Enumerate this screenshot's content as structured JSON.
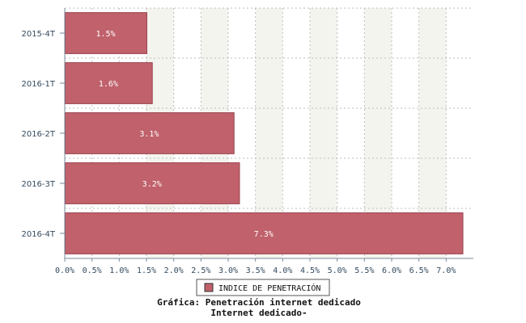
{
  "chart_data": {
    "type": "bar",
    "orientation": "horizontal",
    "categories": [
      "2015-4T",
      "2016-1T",
      "2016-2T",
      "2016-3T",
      "2016-4T"
    ],
    "series": [
      {
        "name": "INDICE DE PENETRACIÓN",
        "values": [
          1.5,
          1.6,
          3.1,
          3.2,
          7.3
        ],
        "data_labels": [
          "1.5%",
          "1.6%",
          "3.1%",
          "3.2%",
          "7.3%"
        ],
        "color": "#c0616b"
      }
    ],
    "xlim": [
      0,
      7.5
    ],
    "x_ticks": [
      0.0,
      0.5,
      1.0,
      1.5,
      2.0,
      2.5,
      3.0,
      3.5,
      4.0,
      4.5,
      5.0,
      5.5,
      6.0,
      6.5,
      7.0
    ],
    "x_tick_labels": [
      "0.0%",
      "0.5%",
      "1.0%",
      "1.5%",
      "2.0%",
      "2.5%",
      "3.0%",
      "3.5%",
      "4.0%",
      "4.5%",
      "5.0%",
      "5.5%",
      "6.0%",
      "6.5%",
      "7.0%"
    ],
    "grid": true,
    "legend_position": "bottom-center",
    "caption_lines": [
      "Gráfica: Penetración internet dedicado",
      "Internet dedicado-"
    ]
  },
  "colors": {
    "bar_fill": "#c0616b",
    "bar_stroke": "#9b4550",
    "band_fill": "#f4f4ef",
    "grid": "#bdbdbd",
    "axis": "#7a8a99"
  }
}
